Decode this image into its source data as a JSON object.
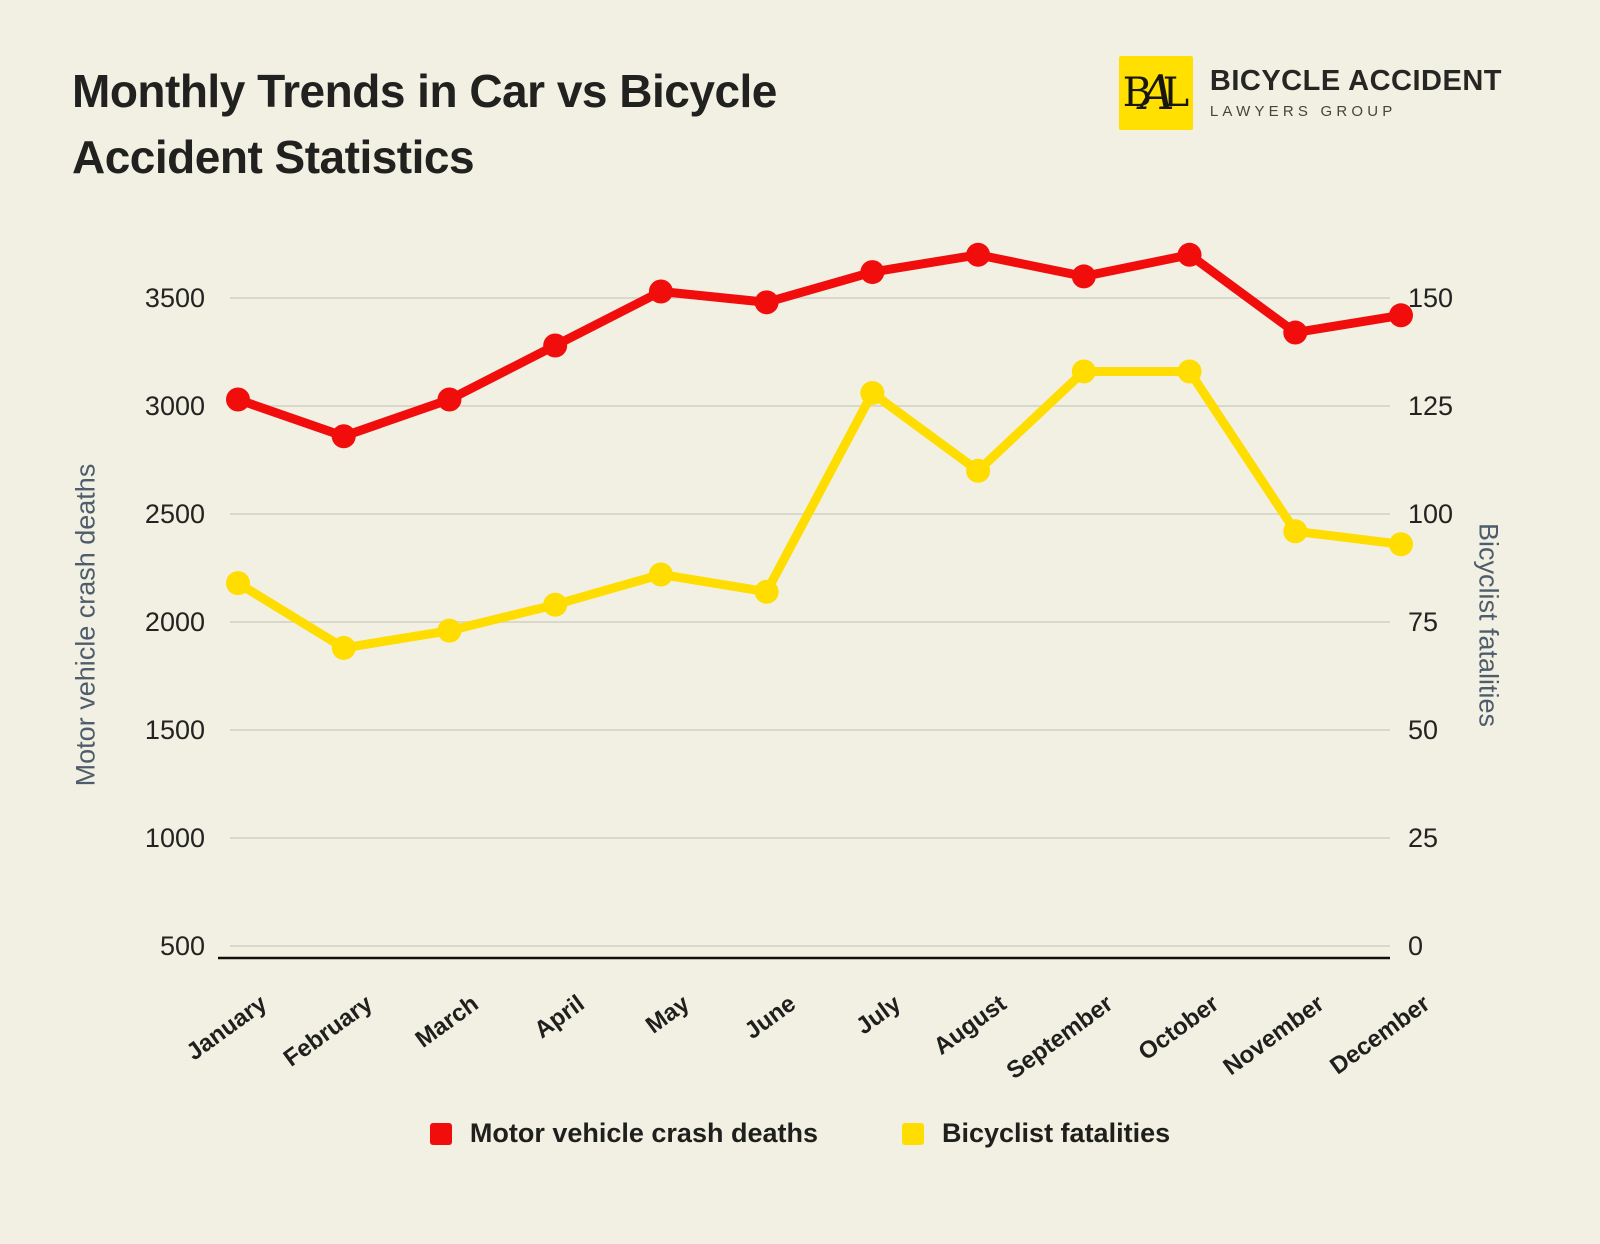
{
  "page": {
    "background": "#F1F0E2"
  },
  "header": {
    "title_line1": "Monthly Trends in Car vs Bicycle",
    "title_line2": "Accident Statistics",
    "logo": {
      "monogram_b": "B",
      "monogram_a": "A",
      "monogram_l": "L",
      "name": "BICYCLE ACCIDENT",
      "subtitle": "LAWYERS GROUP",
      "box_color": "#FFE000"
    }
  },
  "chart_data": {
    "type": "line",
    "title": "Monthly Trends in Car vs Bicycle Accident Statistics",
    "categories": [
      "January",
      "February",
      "March",
      "April",
      "May",
      "June",
      "July",
      "August",
      "September",
      "October",
      "November",
      "December"
    ],
    "series": [
      {
        "name": "Motor vehicle crash deaths",
        "color": "#F20D0D",
        "axis": "left",
        "values": [
          3030,
          2860,
          3030,
          3280,
          3530,
          3480,
          3620,
          3700,
          3600,
          3700,
          3340,
          3420
        ]
      },
      {
        "name": "Bicyclist fatalities",
        "color": "#FFDD00",
        "axis": "right",
        "values": [
          84,
          69,
          73,
          79,
          86,
          82,
          128,
          110,
          133,
          133,
          96,
          93
        ]
      }
    ],
    "left_axis": {
      "label": "Motor vehicle crash deaths",
      "ticks": [
        3500,
        3000,
        2500,
        2000,
        1500,
        1000,
        500
      ],
      "range": [
        500,
        3500
      ]
    },
    "right_axis": {
      "label": "Bicyclist fatalities",
      "ticks": [
        150,
        125,
        100,
        75,
        50,
        25,
        0
      ],
      "range": [
        0,
        150
      ]
    },
    "grid": true,
    "gridline_color": "#D9D8CB",
    "axis_line_color": "#0F0F0D",
    "legend_position": "bottom"
  },
  "legend": {
    "items": [
      {
        "label": "Motor vehicle crash deaths",
        "color": "#F20D0D"
      },
      {
        "label": "Bicyclist fatalities",
        "color": "#FFDD00"
      }
    ]
  }
}
